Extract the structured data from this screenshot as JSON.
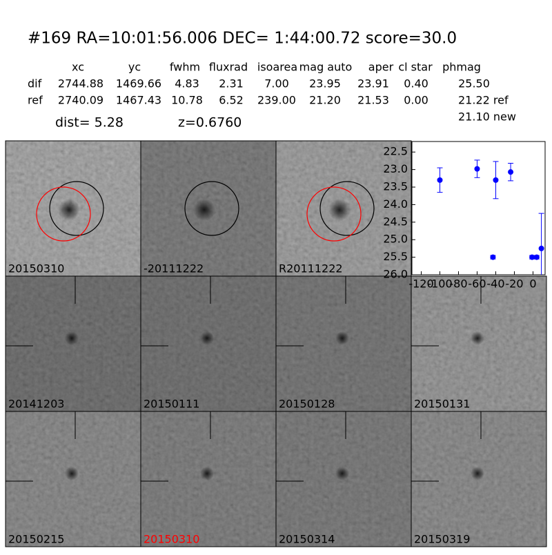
{
  "header": {
    "title": "#169   RA=10:01:56.006 DEC= 1:44:00.72       score=30.0"
  },
  "table": {
    "columns": [
      "xc",
      "yc",
      "fwhm",
      "fluxrad",
      "isoarea",
      "mag auto",
      "aper",
      "cl star",
      "phmag"
    ],
    "rows": [
      [
        "dif",
        "2744.88",
        "1469.66",
        "4.83",
        "2.31",
        "7.00",
        "23.95",
        "23.91",
        "0.40",
        "25.50"
      ],
      [
        "ref",
        "2740.09",
        "1467.43",
        "10.78",
        "6.52",
        "239.00",
        "21.20",
        "21.53",
        "0.00",
        "21.22 ref"
      ]
    ],
    "extra": "21.10 new"
  },
  "dist": "dist=  5.28",
  "z": "z=0.6760",
  "stamps": [
    {
      "label": "20150310"
    },
    {
      "label": "-20111222"
    },
    {
      "label": "R20111222"
    },
    {
      "label": "20141203"
    },
    {
      "label": "20150111"
    },
    {
      "label": "20150128"
    },
    {
      "label": "20150131"
    },
    {
      "label": "20150215"
    },
    {
      "label": "20150310",
      "label_color": "#ff0000"
    },
    {
      "label": "20150314"
    },
    {
      "label": "20150319"
    }
  ],
  "chart_data": {
    "type": "errorbar",
    "inverted_y": true,
    "series": [
      {
        "color": "#0000ff",
        "x": [
          -100,
          -60,
          -43,
          -40,
          -24,
          -1,
          4,
          9
        ],
        "values": [
          23.3,
          22.98,
          25.5,
          23.3,
          23.07,
          25.5,
          25.5,
          25.25
        ],
        "errors": [
          0.35,
          0.25,
          0.05,
          0.53,
          0.25,
          0.05,
          0.05,
          1.0
        ]
      }
    ],
    "xlim": [
      -130,
      13
    ],
    "ylim": [
      26.0,
      22.2
    ],
    "xticks": [
      -120,
      -100,
      -80,
      -60,
      -40,
      -20,
      0
    ],
    "yticks": [
      {
        "value": 22.5,
        "label": "22.5"
      },
      {
        "value": 23,
        "label": "23.0"
      },
      {
        "value": 23.5,
        "label": "23.5"
      },
      {
        "value": 24,
        "label": "24.0"
      },
      {
        "value": 24.5,
        "label": "24.5"
      },
      {
        "value": 25,
        "label": "25.0"
      },
      {
        "value": 25.5,
        "label": "25.5"
      },
      {
        "value": 26,
        "label": "26.0"
      }
    ]
  }
}
